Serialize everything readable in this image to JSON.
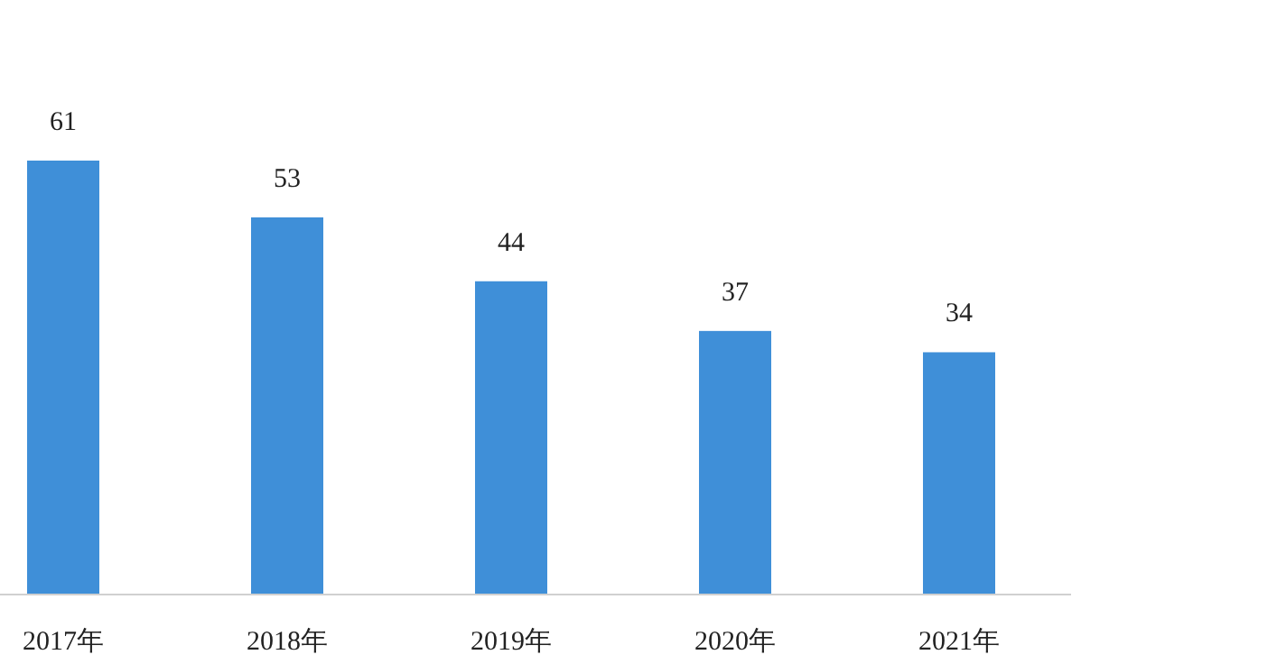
{
  "chart_data": {
    "type": "bar",
    "categories": [
      "2017年",
      "2018年",
      "2019年",
      "2020年",
      "2021年"
    ],
    "values": [
      61,
      53,
      44,
      37,
      34
    ],
    "color": "#3f8fd8",
    "data_labels": true
  }
}
